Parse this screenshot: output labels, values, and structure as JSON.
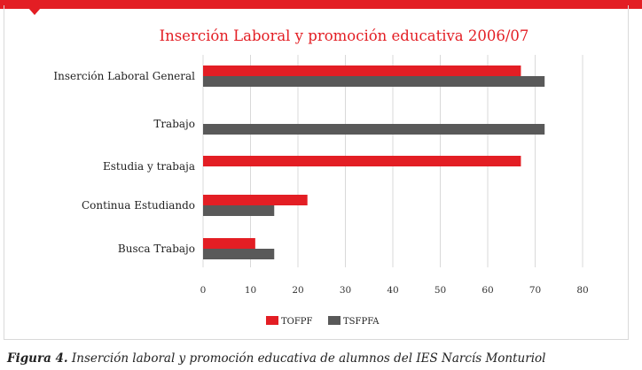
{
  "caption": {
    "label": "Figura 4.",
    "text": "Inserción laboral y promoción educativa de alumnos del IES Narcís Monturiol"
  },
  "colors": {
    "accent": "#e31e24",
    "series1": "#e31e24",
    "series2": "#595959",
    "title": "#e31e24"
  },
  "chart_data": {
    "type": "bar",
    "orientation": "horizontal",
    "title": "Inserción Laboral y promoción educativa 2006/07",
    "categories": [
      "Inserción Laboral General",
      "Trabajo",
      "Estudia y trabaja",
      "Continua Estudiando",
      "Busca Trabajo"
    ],
    "series": [
      {
        "name": "TOFPF",
        "values": [
          67,
          0,
          67,
          22,
          11
        ]
      },
      {
        "name": "TSFPFA",
        "values": [
          72,
          72,
          0,
          15,
          15
        ]
      }
    ],
    "xlim": [
      0,
      80
    ],
    "xticks": [
      0,
      10,
      20,
      30,
      40,
      50,
      60,
      70,
      80
    ],
    "grid": "vertical",
    "legend": "bottom"
  }
}
